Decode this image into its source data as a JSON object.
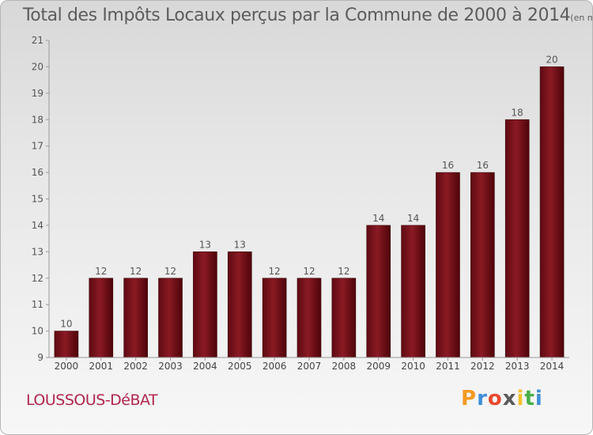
{
  "title": "Total des Impôts Locaux perçus par la Commune de 2000 à 2014",
  "unit": "(en milliers d'€)",
  "commune": "LOUSSOUS-DéBAT",
  "logo": {
    "text": "Proxiti",
    "colors": [
      "#f59a23",
      "#3f8fd8",
      "#e8492d",
      "#5a5a5a",
      "#f5c12a",
      "#49b048",
      "#3f8fd8"
    ]
  },
  "chart_data": {
    "type": "bar",
    "categories": [
      "2000",
      "2001",
      "2002",
      "2003",
      "2004",
      "2005",
      "2006",
      "2007",
      "2008",
      "2009",
      "2010",
      "2011",
      "2012",
      "2013",
      "2014"
    ],
    "values": [
      10,
      12,
      12,
      12,
      13,
      13,
      12,
      12,
      12,
      14,
      14,
      16,
      16,
      18,
      20
    ],
    "ylim": [
      9,
      21
    ],
    "yticks": [
      9,
      10,
      11,
      12,
      13,
      14,
      15,
      16,
      17,
      18,
      19,
      20,
      21
    ],
    "bar_color": "#7a0f18",
    "grid": false,
    "data_labels": true
  }
}
